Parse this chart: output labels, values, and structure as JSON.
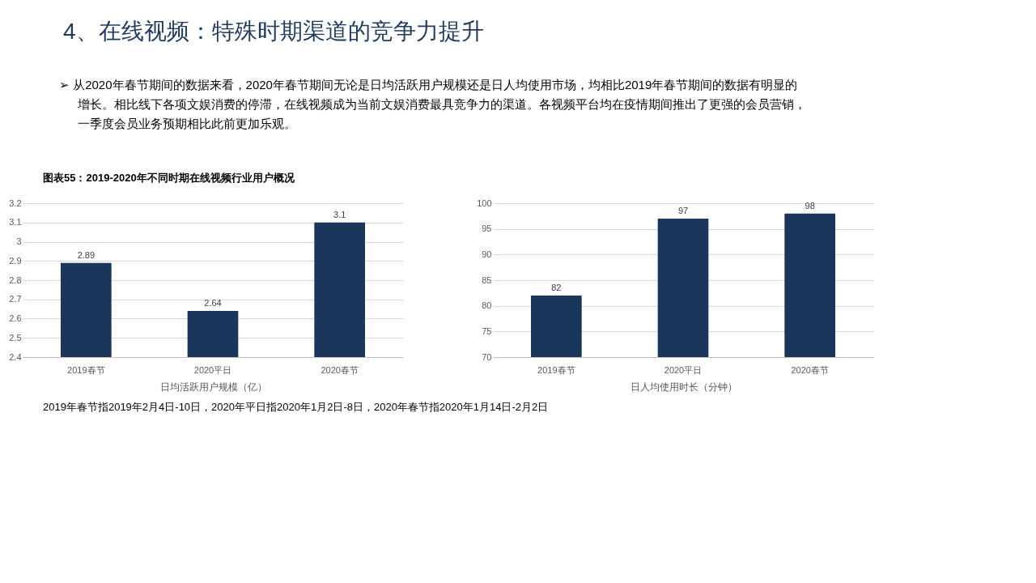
{
  "chart_data": [
    {
      "type": "bar",
      "title": "图表55：2019-2020年不同时期在线视频行业用户概况",
      "annotations": [
        "4、在线视频：特殊时期渠道的竞争力提升",
        "➢  从2020年春节期间的数据来看，2020年春节期间无论是日均活跃用户规模还是日人均使用市场，均相比2019年春节期间的数据有明显的",
        "增长。相比线下各项文娱消费的停滞，在线视频成为当前文娱消费最具竞争力的渠道。各视频平台均在疫情期间推出了更强的会员营销，",
        "一季度会员业务预期相比此前更加乐观。",
        "2019年春节指2019年2月4日-10日，2020年平日指2020年1月2日-8日，2020年春节指2020年1月14日-2月2日"
      ],
      "categories": [
        "2019春节",
        "2020平日",
        "2020春节"
      ],
      "values": [
        2.89,
        2.64,
        3.1
      ],
      "color": "#1b365d",
      "xlabel": "日均活跃用户规模（亿）",
      "ylim": [
        2.4,
        3.2
      ],
      "yticks": [
        2.4,
        2.5,
        2.6,
        2.7,
        2.8,
        2.9,
        3,
        3.1,
        3.2
      ],
      "grid": "y",
      "data_labels": true
    },
    {
      "type": "bar",
      "categories": [
        "2019春节",
        "2020平日",
        "2020春节"
      ],
      "values": [
        82,
        97,
        98
      ],
      "color": "#1b365d",
      "xlabel": "日人均使用时长（分钟）",
      "ylim": [
        70,
        100
      ],
      "yticks": [
        70,
        75,
        80,
        85,
        90,
        95,
        100
      ],
      "grid": "y",
      "data_labels": true
    }
  ]
}
